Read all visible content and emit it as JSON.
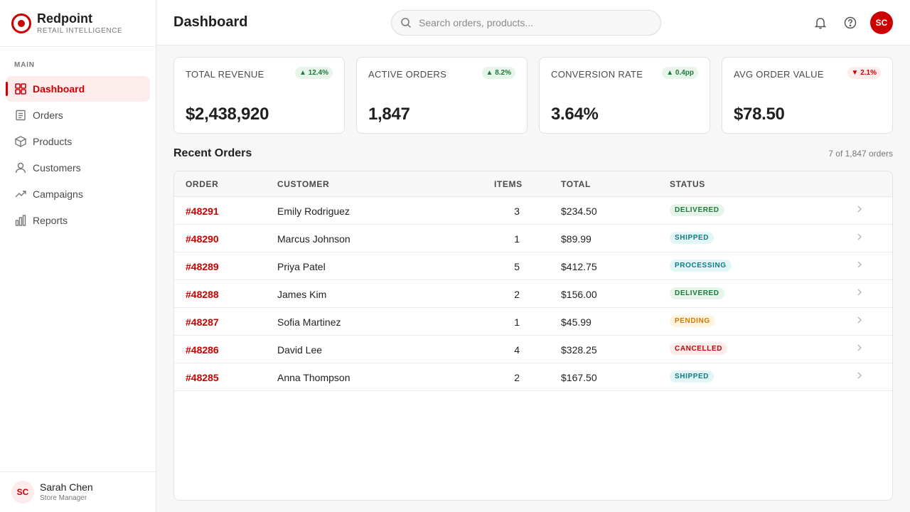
{
  "brand": {
    "name": "Redpoint",
    "subtitle": "RETAIL INTELLIGENCE",
    "accent": "#cc0000"
  },
  "sidebar": {
    "section": "MAIN",
    "items": [
      {
        "label": "Dashboard",
        "icon": "grid-icon",
        "active": true
      },
      {
        "label": "Orders",
        "icon": "document-icon"
      },
      {
        "label": "Products",
        "icon": "box-icon"
      },
      {
        "label": "Customers",
        "icon": "person-icon"
      },
      {
        "label": "Campaigns",
        "icon": "trend-icon"
      },
      {
        "label": "Reports",
        "icon": "bar-chart-icon"
      }
    ],
    "user": {
      "initials": "SC",
      "name": "Sarah Chen",
      "role": "Store Manager"
    }
  },
  "header": {
    "title": "Dashboard",
    "search_placeholder": "Search orders, products...",
    "avatar_initials": "SC"
  },
  "kpis": [
    {
      "label": "TOTAL REVENUE",
      "delta": "▲ 12.4%",
      "direction": "up",
      "value": "$2,438,920"
    },
    {
      "label": "ACTIVE ORDERS",
      "delta": "▲ 8.2%",
      "direction": "up",
      "value": "1,847"
    },
    {
      "label": "CONVERSION RATE",
      "delta": "▲ 0.4pp",
      "direction": "up",
      "value": "3.64%"
    },
    {
      "label": "AVG ORDER VALUE",
      "delta": "▼ 2.1%",
      "direction": "down",
      "value": "$78.50"
    }
  ],
  "orders": {
    "title": "Recent Orders",
    "count": "7 of 1,847 orders",
    "columns": [
      "ORDER",
      "CUSTOMER",
      "ITEMS",
      "TOTAL",
      "STATUS"
    ],
    "rows": [
      {
        "order": "#48291",
        "customer": "Emily Rodriguez",
        "items": "3",
        "total": "$234.50",
        "status": "DELIVERED"
      },
      {
        "order": "#48290",
        "customer": "Marcus Johnson",
        "items": "1",
        "total": "$89.99",
        "status": "SHIPPED"
      },
      {
        "order": "#48289",
        "customer": "Priya Patel",
        "items": "5",
        "total": "$412.75",
        "status": "PROCESSING"
      },
      {
        "order": "#48288",
        "customer": "James Kim",
        "items": "2",
        "total": "$156.00",
        "status": "DELIVERED"
      },
      {
        "order": "#48287",
        "customer": "Sofia Martinez",
        "items": "1",
        "total": "$45.99",
        "status": "PENDING"
      },
      {
        "order": "#48286",
        "customer": "David Lee",
        "items": "4",
        "total": "$328.25",
        "status": "CANCELLED"
      },
      {
        "order": "#48285",
        "customer": "Anna Thompson",
        "items": "2",
        "total": "$167.50",
        "status": "SHIPPED"
      }
    ],
    "status_colors": {
      "DELIVERED": {
        "bg": "#e6f4ea",
        "fg": "#1e7a3a"
      },
      "SHIPPED": {
        "bg": "#e3f6f7",
        "fg": "#127a82"
      },
      "PROCESSING": {
        "bg": "#e3f6f7",
        "fg": "#127a82"
      },
      "PENDING": {
        "bg": "#fff4e0",
        "fg": "#d97706"
      },
      "CANCELLED": {
        "bg": "#fdecec",
        "fg": "#cc0000"
      }
    }
  }
}
